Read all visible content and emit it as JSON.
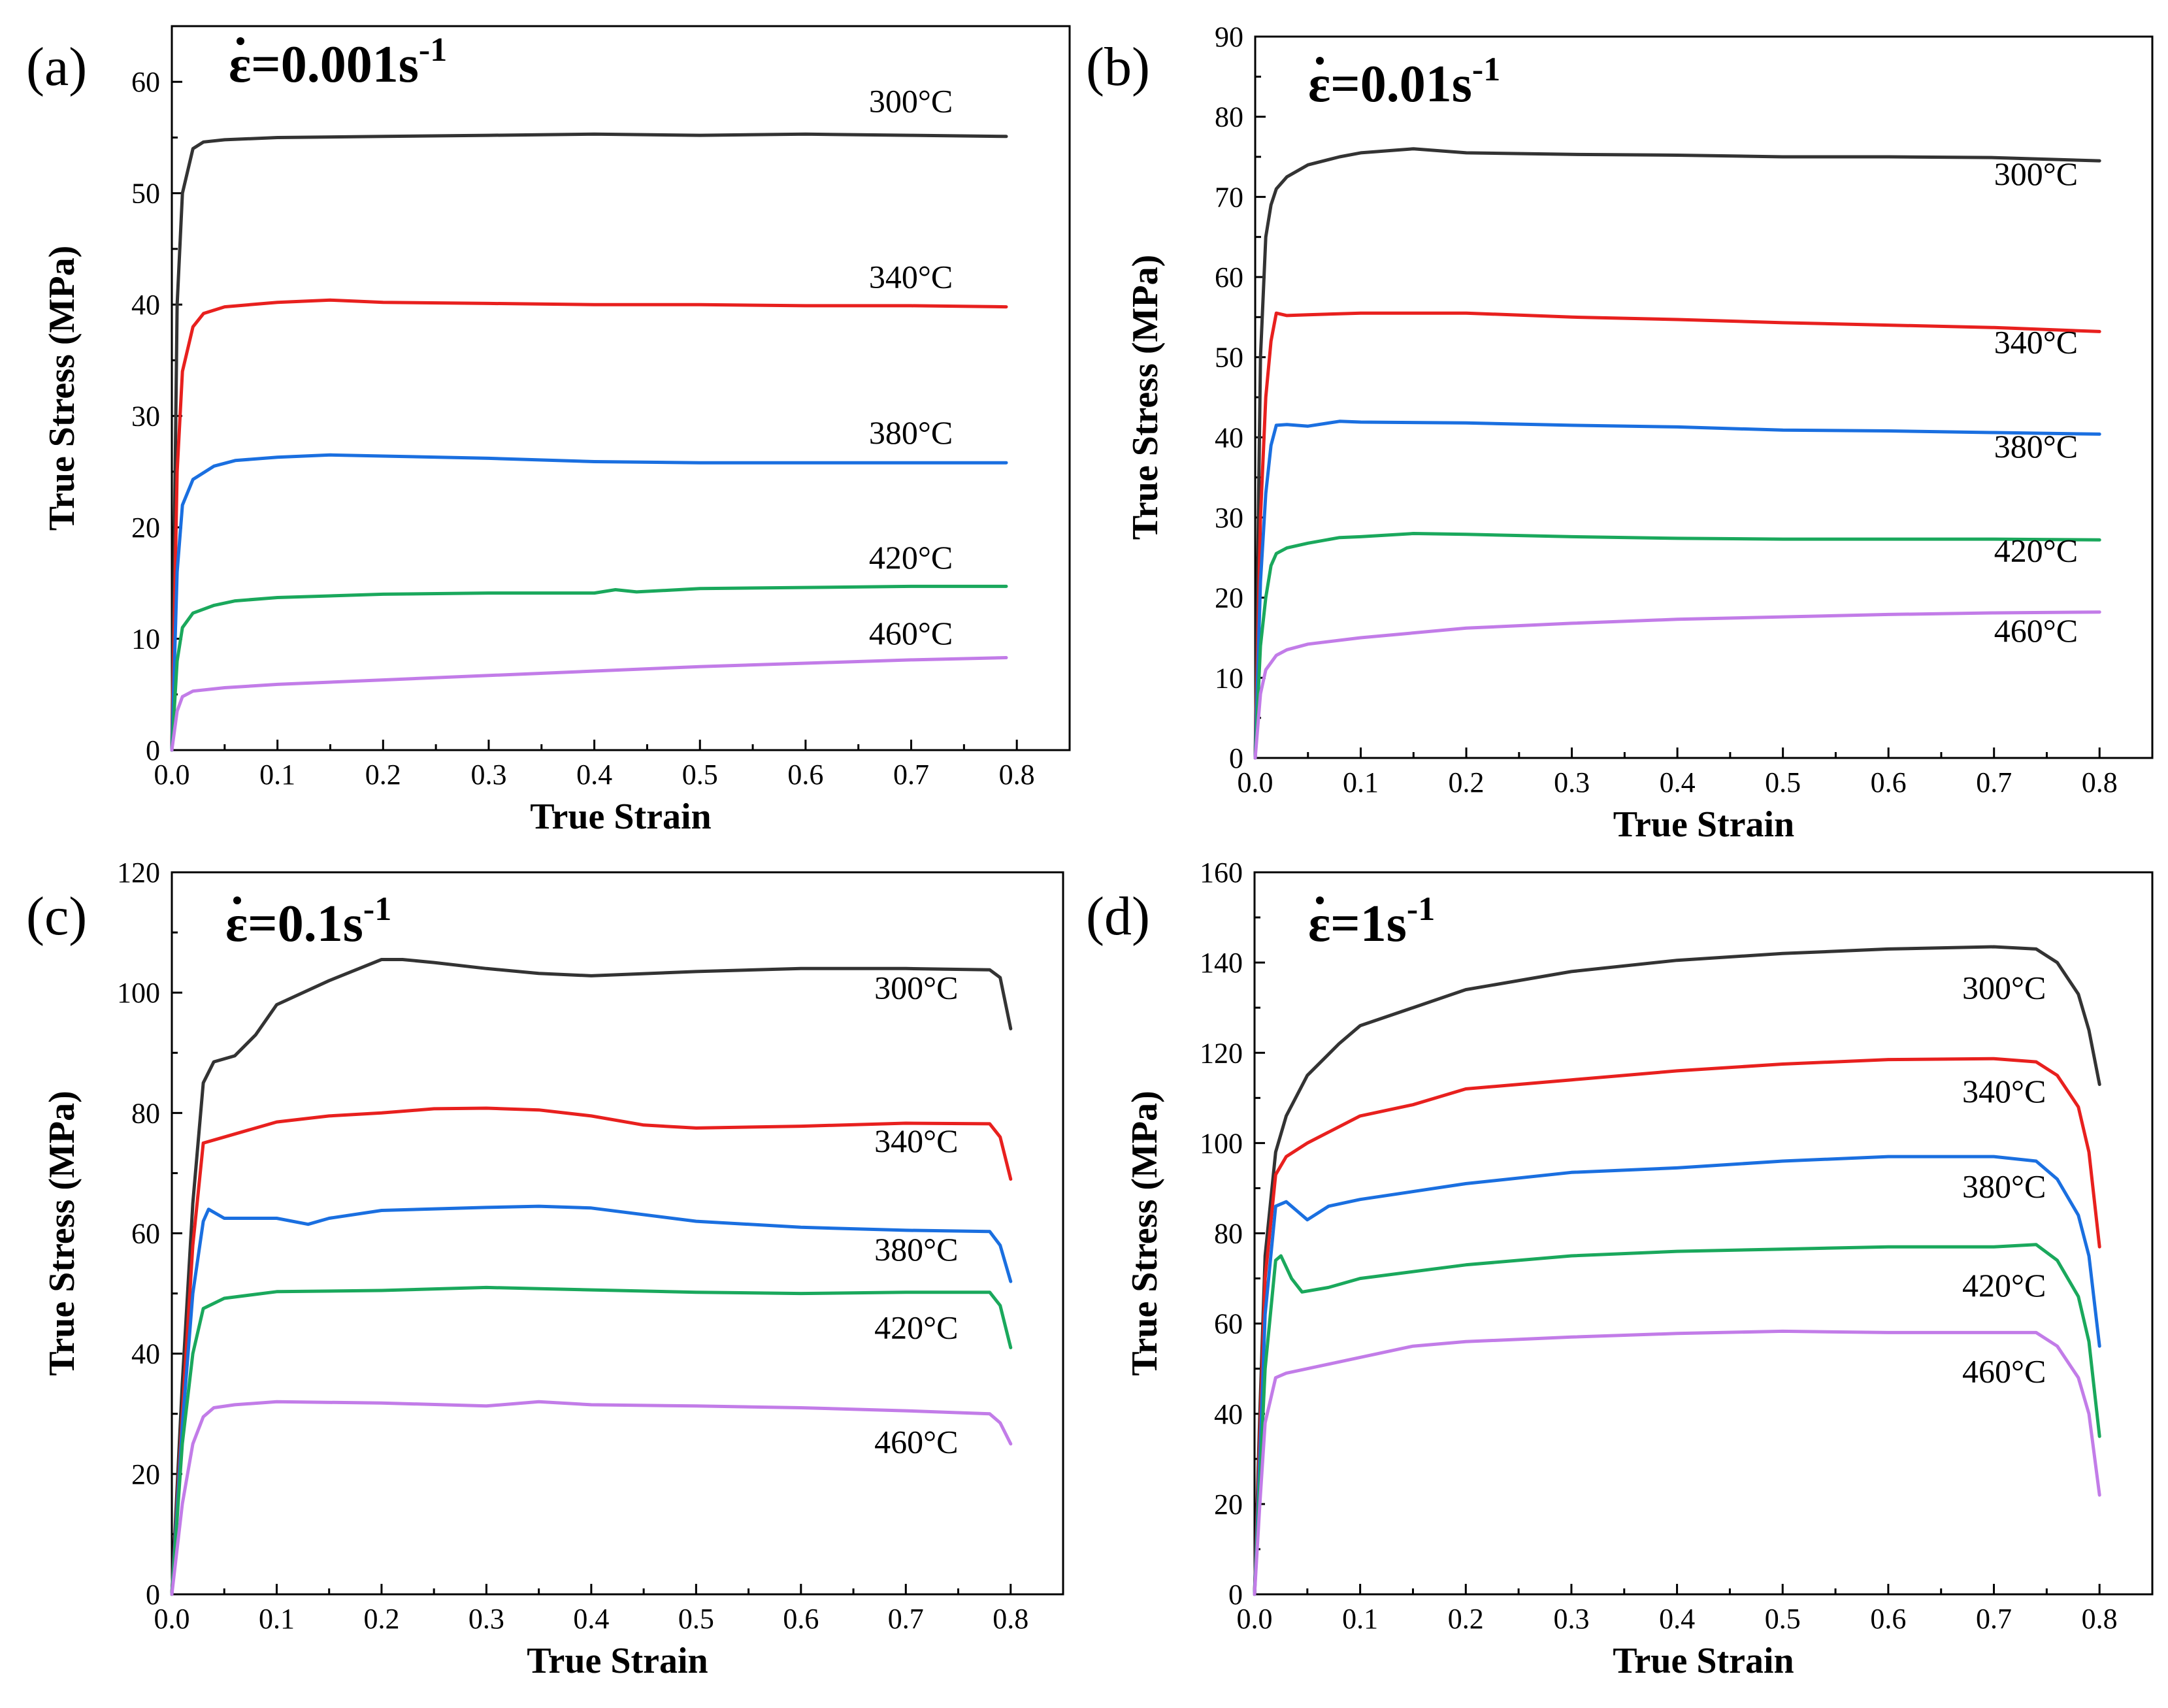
{
  "colors": {
    "300": "#333333",
    "340": "#e8201e",
    "380": "#1a6fe0",
    "420": "#1aa85c",
    "460": "#c27ce8"
  },
  "chart_data": [
    {
      "type": "line",
      "panel": "(a)",
      "rate": {
        "base": "ε=0.001s",
        "sup": "-1"
      },
      "xlabel": "True Strain",
      "ylabel": "True Stress (MPa)",
      "xlim": [
        0,
        0.85
      ],
      "ylim": [
        0,
        65
      ],
      "xticks": [
        0.0,
        0.1,
        0.2,
        0.3,
        0.4,
        0.5,
        0.6,
        0.7,
        0.8
      ],
      "yticks": [
        0,
        10,
        20,
        30,
        40,
        50,
        60
      ],
      "series": [
        {
          "name": "300°C",
          "key": "300",
          "label_at": [
            0.66,
            57.3
          ],
          "x": [
            0,
            0.005,
            0.01,
            0.02,
            0.03,
            0.05,
            0.1,
            0.2,
            0.3,
            0.4,
            0.5,
            0.6,
            0.7,
            0.79
          ],
          "values": [
            0,
            40,
            50,
            54,
            54.6,
            54.8,
            55,
            55.1,
            55.2,
            55.3,
            55.2,
            55.3,
            55.2,
            55.1
          ]
        },
        {
          "name": "340°C",
          "key": "340",
          "label_at": [
            0.66,
            41.5
          ],
          "x": [
            0,
            0.005,
            0.01,
            0.02,
            0.03,
            0.05,
            0.1,
            0.15,
            0.2,
            0.3,
            0.4,
            0.5,
            0.6,
            0.7,
            0.79
          ],
          "values": [
            0,
            25,
            34,
            38,
            39.2,
            39.8,
            40.2,
            40.4,
            40.2,
            40.1,
            40,
            40,
            39.9,
            39.9,
            39.8
          ]
        },
        {
          "name": "380°C",
          "key": "380",
          "label_at": [
            0.66,
            27.5
          ],
          "x": [
            0,
            0.005,
            0.01,
            0.02,
            0.04,
            0.06,
            0.1,
            0.15,
            0.2,
            0.3,
            0.4,
            0.5,
            0.6,
            0.7,
            0.79
          ],
          "values": [
            0,
            16,
            22,
            24.3,
            25.5,
            26,
            26.3,
            26.5,
            26.4,
            26.2,
            25.9,
            25.8,
            25.8,
            25.8,
            25.8
          ]
        },
        {
          "name": "420°C",
          "key": "420",
          "label_at": [
            0.66,
            16.3
          ],
          "x": [
            0,
            0.005,
            0.01,
            0.02,
            0.04,
            0.06,
            0.1,
            0.2,
            0.3,
            0.4,
            0.42,
            0.44,
            0.5,
            0.6,
            0.7,
            0.79
          ],
          "values": [
            0,
            8,
            11,
            12.3,
            13,
            13.4,
            13.7,
            14,
            14.1,
            14.1,
            14.4,
            14.2,
            14.5,
            14.6,
            14.7,
            14.7
          ]
        },
        {
          "name": "460°C",
          "key": "460",
          "label_at": [
            0.66,
            9.5
          ],
          "x": [
            0,
            0.005,
            0.01,
            0.02,
            0.05,
            0.1,
            0.2,
            0.3,
            0.4,
            0.5,
            0.6,
            0.7,
            0.79
          ],
          "values": [
            0,
            3.5,
            4.8,
            5.3,
            5.6,
            5.9,
            6.3,
            6.7,
            7.1,
            7.5,
            7.8,
            8.1,
            8.3
          ]
        }
      ]
    },
    {
      "type": "line",
      "panel": "(b)",
      "rate": {
        "base": "ε=0.01s",
        "sup": "-1"
      },
      "xlabel": "True Strain",
      "ylabel": "True Stress (MPa)",
      "xlim": [
        0,
        0.85
      ],
      "ylim": [
        0,
        90
      ],
      "xticks": [
        0.0,
        0.1,
        0.2,
        0.3,
        0.4,
        0.5,
        0.6,
        0.7,
        0.8
      ],
      "yticks": [
        0,
        10,
        20,
        30,
        40,
        50,
        60,
        70,
        80,
        90
      ],
      "series": [
        {
          "name": "300°C",
          "key": "300",
          "label_at": [
            0.7,
            71.5
          ],
          "x": [
            0,
            0.005,
            0.01,
            0.015,
            0.02,
            0.03,
            0.05,
            0.08,
            0.1,
            0.15,
            0.2,
            0.3,
            0.4,
            0.5,
            0.6,
            0.7,
            0.8
          ],
          "values": [
            0,
            50,
            65,
            69,
            71,
            72.5,
            74,
            75,
            75.5,
            76,
            75.5,
            75.3,
            75.2,
            75,
            75,
            74.9,
            74.5
          ]
        },
        {
          "name": "340°C",
          "key": "340",
          "label_at": [
            0.7,
            50.5
          ],
          "x": [
            0,
            0.005,
            0.01,
            0.015,
            0.02,
            0.03,
            0.05,
            0.1,
            0.2,
            0.3,
            0.4,
            0.5,
            0.6,
            0.7,
            0.8
          ],
          "values": [
            0,
            30,
            45,
            52,
            55.5,
            55.2,
            55.3,
            55.5,
            55.5,
            55,
            54.7,
            54.3,
            54,
            53.7,
            53.2
          ]
        },
        {
          "name": "380°C",
          "key": "380",
          "label_at": [
            0.7,
            37.5
          ],
          "x": [
            0,
            0.005,
            0.01,
            0.015,
            0.02,
            0.03,
            0.05,
            0.08,
            0.1,
            0.2,
            0.3,
            0.4,
            0.5,
            0.6,
            0.7,
            0.8
          ],
          "values": [
            0,
            22,
            33,
            39,
            41.5,
            41.6,
            41.4,
            42,
            41.9,
            41.8,
            41.5,
            41.3,
            40.9,
            40.8,
            40.6,
            40.4
          ]
        },
        {
          "name": "420°C",
          "key": "420",
          "label_at": [
            0.7,
            24.5
          ],
          "x": [
            0,
            0.005,
            0.01,
            0.015,
            0.02,
            0.03,
            0.05,
            0.08,
            0.1,
            0.15,
            0.2,
            0.3,
            0.4,
            0.5,
            0.6,
            0.7,
            0.8
          ],
          "values": [
            0,
            14,
            20,
            24,
            25.5,
            26.2,
            26.8,
            27.5,
            27.6,
            28,
            27.9,
            27.6,
            27.4,
            27.3,
            27.3,
            27.3,
            27.2
          ]
        },
        {
          "name": "460°C",
          "key": "460",
          "label_at": [
            0.7,
            14.5
          ],
          "x": [
            0,
            0.005,
            0.01,
            0.02,
            0.03,
            0.05,
            0.1,
            0.2,
            0.3,
            0.4,
            0.5,
            0.6,
            0.7,
            0.8
          ],
          "values": [
            0,
            8,
            11,
            12.8,
            13.5,
            14.2,
            15,
            16.2,
            16.8,
            17.3,
            17.6,
            17.9,
            18.1,
            18.2
          ]
        }
      ]
    },
    {
      "type": "line",
      "panel": "(c)",
      "rate": {
        "base": "ε=0.1s",
        "sup": "-1"
      },
      "xlabel": "True Strain",
      "ylabel": "True Stress (MPa)",
      "xlim": [
        0,
        0.85
      ],
      "ylim": [
        0,
        120
      ],
      "xticks": [
        0.0,
        0.1,
        0.2,
        0.3,
        0.4,
        0.5,
        0.6,
        0.7,
        0.8
      ],
      "yticks": [
        0,
        20,
        40,
        60,
        80,
        100,
        120
      ],
      "series": [
        {
          "name": "300°C",
          "key": "300",
          "label_at": [
            0.67,
            99
          ],
          "x": [
            0,
            0.01,
            0.02,
            0.03,
            0.04,
            0.06,
            0.08,
            0.1,
            0.15,
            0.2,
            0.22,
            0.25,
            0.3,
            0.35,
            0.4,
            0.5,
            0.6,
            0.7,
            0.78,
            0.79,
            0.8
          ],
          "values": [
            0,
            35,
            65,
            85,
            88.5,
            89.5,
            93,
            98,
            102,
            105.5,
            105.5,
            105,
            104,
            103.2,
            102.8,
            103.5,
            104,
            104,
            103.8,
            102.5,
            94
          ]
        },
        {
          "name": "340°C",
          "key": "340",
          "label_at": [
            0.67,
            73.5
          ],
          "x": [
            0,
            0.01,
            0.02,
            0.03,
            0.05,
            0.1,
            0.15,
            0.2,
            0.25,
            0.3,
            0.35,
            0.4,
            0.45,
            0.5,
            0.6,
            0.7,
            0.78,
            0.79,
            0.8
          ],
          "values": [
            0,
            30,
            58,
            75,
            76,
            78.5,
            79.5,
            80,
            80.7,
            80.8,
            80.5,
            79.5,
            78,
            77.5,
            77.8,
            78.3,
            78.2,
            76,
            69
          ]
        },
        {
          "name": "380°C",
          "key": "380",
          "label_at": [
            0.67,
            55.5
          ],
          "x": [
            0,
            0.01,
            0.02,
            0.03,
            0.035,
            0.05,
            0.1,
            0.13,
            0.15,
            0.2,
            0.3,
            0.35,
            0.4,
            0.5,
            0.6,
            0.7,
            0.78,
            0.79,
            0.8
          ],
          "values": [
            0,
            28,
            50,
            62,
            64,
            62.5,
            62.5,
            61.5,
            62.5,
            63.8,
            64.3,
            64.5,
            64.2,
            62,
            61,
            60.5,
            60.3,
            58,
            52
          ]
        },
        {
          "name": "420°C",
          "key": "420",
          "label_at": [
            0.67,
            42.5
          ],
          "x": [
            0,
            0.01,
            0.02,
            0.03,
            0.05,
            0.1,
            0.2,
            0.3,
            0.4,
            0.5,
            0.6,
            0.7,
            0.78,
            0.79,
            0.8
          ],
          "values": [
            0,
            25,
            40,
            47.5,
            49.2,
            50.3,
            50.5,
            51,
            50.6,
            50.2,
            50,
            50.2,
            50.2,
            48,
            41
          ]
        },
        {
          "name": "460°C",
          "key": "460",
          "label_at": [
            0.67,
            23.5
          ],
          "x": [
            0,
            0.01,
            0.02,
            0.03,
            0.04,
            0.06,
            0.1,
            0.2,
            0.3,
            0.35,
            0.4,
            0.5,
            0.6,
            0.7,
            0.78,
            0.79,
            0.8
          ],
          "values": [
            0,
            15,
            25,
            29.5,
            31,
            31.5,
            32,
            31.8,
            31.3,
            32,
            31.5,
            31.3,
            31,
            30.5,
            30,
            28.5,
            25
          ]
        }
      ]
    },
    {
      "type": "line",
      "panel": "(d)",
      "rate": {
        "base": "ε=1s",
        "sup": "-1"
      },
      "xlabel": "True Strain",
      "ylabel": "True Stress (MPa)",
      "xlim": [
        0,
        0.85
      ],
      "ylim": [
        0,
        160
      ],
      "xticks": [
        0.0,
        0.1,
        0.2,
        0.3,
        0.4,
        0.5,
        0.6,
        0.7,
        0.8
      ],
      "yticks": [
        0,
        20,
        40,
        60,
        80,
        100,
        120,
        140,
        160
      ],
      "series": [
        {
          "name": "300°C",
          "key": "300",
          "label_at": [
            0.67,
            132
          ],
          "x": [
            0,
            0.005,
            0.01,
            0.02,
            0.03,
            0.05,
            0.08,
            0.1,
            0.15,
            0.2,
            0.3,
            0.4,
            0.5,
            0.6,
            0.7,
            0.74,
            0.76,
            0.78,
            0.79,
            0.8
          ],
          "values": [
            0,
            40,
            75,
            98,
            106,
            115,
            122,
            126,
            130,
            134,
            138,
            140.5,
            142,
            143,
            143.5,
            143,
            140,
            133,
            125,
            113
          ]
        },
        {
          "name": "340°C",
          "key": "340",
          "label_at": [
            0.67,
            109
          ],
          "x": [
            0,
            0.005,
            0.01,
            0.02,
            0.03,
            0.05,
            0.1,
            0.15,
            0.2,
            0.3,
            0.4,
            0.5,
            0.6,
            0.7,
            0.74,
            0.76,
            0.78,
            0.79,
            0.8
          ],
          "values": [
            0,
            35,
            70,
            93,
            97,
            100,
            106,
            108.5,
            112,
            114,
            116,
            117.5,
            118.5,
            118.7,
            118,
            115,
            108,
            98,
            77
          ]
        },
        {
          "name": "380°C",
          "key": "380",
          "label_at": [
            0.67,
            88
          ],
          "x": [
            0,
            0.005,
            0.01,
            0.02,
            0.03,
            0.04,
            0.05,
            0.07,
            0.1,
            0.2,
            0.3,
            0.4,
            0.5,
            0.6,
            0.7,
            0.74,
            0.76,
            0.78,
            0.79,
            0.8
          ],
          "values": [
            0,
            30,
            62,
            86,
            87,
            85,
            83,
            86,
            87.5,
            91,
            93.5,
            94.5,
            96,
            97,
            97,
            96,
            92,
            84,
            75,
            55
          ]
        },
        {
          "name": "420°C",
          "key": "420",
          "label_at": [
            0.67,
            66
          ],
          "x": [
            0,
            0.005,
            0.01,
            0.02,
            0.025,
            0.035,
            0.045,
            0.07,
            0.1,
            0.2,
            0.3,
            0.4,
            0.5,
            0.6,
            0.7,
            0.74,
            0.76,
            0.78,
            0.79,
            0.8
          ],
          "values": [
            0,
            25,
            50,
            74,
            75,
            70,
            67,
            68,
            70,
            73,
            75,
            76,
            76.5,
            77,
            77,
            77.5,
            74,
            66,
            56,
            35
          ]
        },
        {
          "name": "460°C",
          "key": "460",
          "label_at": [
            0.67,
            47
          ],
          "x": [
            0,
            0.005,
            0.01,
            0.02,
            0.03,
            0.05,
            0.1,
            0.15,
            0.2,
            0.3,
            0.4,
            0.5,
            0.6,
            0.7,
            0.74,
            0.76,
            0.78,
            0.79,
            0.8
          ],
          "values": [
            0,
            20,
            38,
            48,
            49,
            50,
            52.5,
            55,
            56,
            57,
            57.8,
            58.3,
            58,
            58,
            58,
            55,
            48,
            40,
            22
          ]
        }
      ]
    }
  ]
}
